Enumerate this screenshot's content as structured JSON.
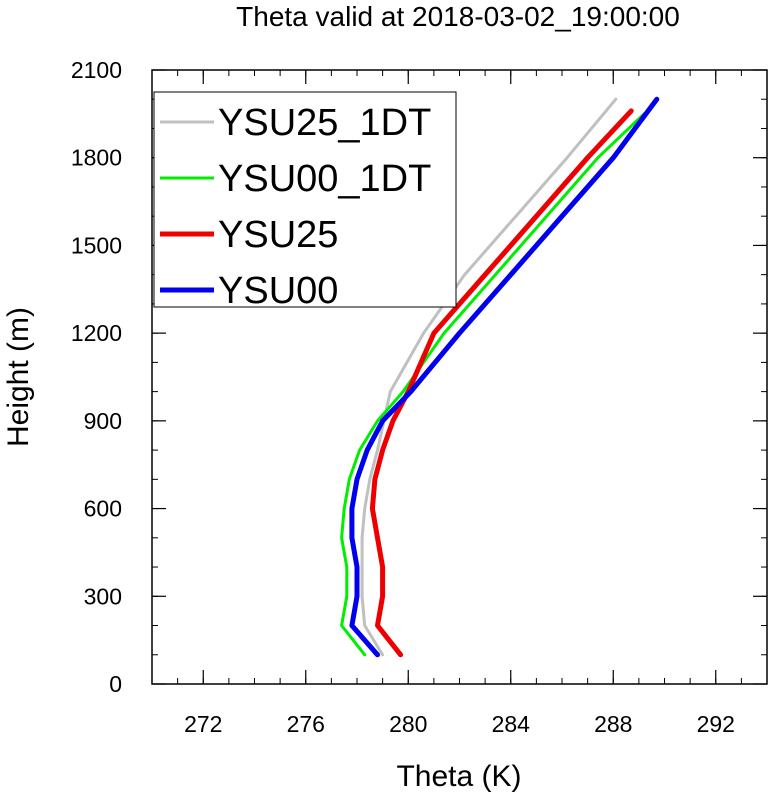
{
  "chart_data": {
    "type": "line",
    "title": "Theta valid at 2018-03-02_19:00:00",
    "xlabel": "Theta (K)",
    "ylabel": "Height (m)",
    "xlim": [
      270,
      294
    ],
    "ylim": [
      0,
      2100
    ],
    "xticks": [
      272,
      276,
      280,
      284,
      288,
      292
    ],
    "yticks": [
      0,
      300,
      600,
      900,
      1200,
      1500,
      1800,
      2100
    ],
    "x_minor_step": 1,
    "y_minor_step": 100,
    "grid": false,
    "legend_position": "top-left",
    "series": [
      {
        "name": "YSU25_1DT",
        "color": "#c0c0c0",
        "width": 3,
        "x": [
          279.0,
          278.3,
          278.2,
          278.2,
          278.2,
          278.3,
          278.5,
          278.8,
          279.3,
          280.6,
          282.2,
          284.2,
          286.2,
          288.1
        ],
        "y": [
          100,
          200,
          300,
          400,
          500,
          600,
          700,
          800,
          1000,
          1200,
          1400,
          1600,
          1800,
          2000
        ]
      },
      {
        "name": "YSU00_1DT",
        "color": "#00ee00",
        "width": 3,
        "x": [
          278.3,
          277.4,
          277.6,
          277.6,
          277.4,
          277.5,
          277.7,
          278.1,
          278.8,
          279.8,
          281.4,
          283.4,
          285.4,
          287.4,
          289.2
        ],
        "y": [
          100,
          200,
          300,
          400,
          500,
          600,
          700,
          800,
          900,
          1000,
          1200,
          1400,
          1600,
          1800,
          1950
        ]
      },
      {
        "name": "YSU25",
        "color": "#ee0000",
        "width": 5,
        "x": [
          279.7,
          278.8,
          279.0,
          279.0,
          278.8,
          278.6,
          278.7,
          279.0,
          279.4,
          280.0,
          281.0,
          283.0,
          285.0,
          287.0,
          288.7
        ],
        "y": [
          100,
          200,
          300,
          400,
          500,
          600,
          700,
          800,
          900,
          1000,
          1200,
          1400,
          1600,
          1800,
          1960
        ]
      },
      {
        "name": "YSU00",
        "color": "#0000ee",
        "width": 5,
        "x": [
          278.8,
          277.8,
          278.0,
          278.0,
          277.8,
          277.8,
          278.0,
          278.4,
          279.0,
          280.1,
          282.0,
          284.0,
          286.0,
          288.0,
          289.7
        ],
        "y": [
          100,
          200,
          300,
          400,
          500,
          600,
          700,
          800,
          900,
          1000,
          1200,
          1400,
          1600,
          1800,
          2000
        ]
      }
    ]
  }
}
